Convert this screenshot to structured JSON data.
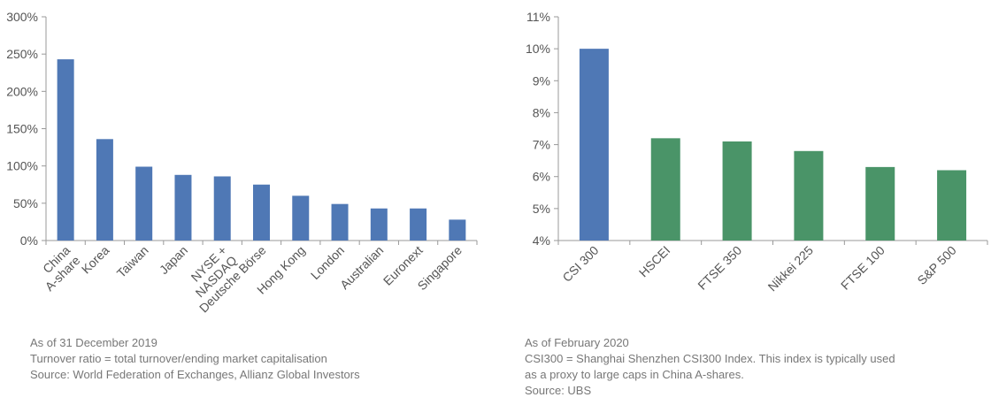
{
  "chart_data": [
    {
      "type": "bar",
      "title": "",
      "xlabel": "",
      "ylabel": "",
      "categories": [
        [
          "China",
          "A-share"
        ],
        [
          "Korea"
        ],
        [
          "Taiwan"
        ],
        [
          "Japan"
        ],
        [
          "NYSE +",
          "NASDAQ"
        ],
        [
          "Deutsche Börse"
        ],
        [
          "Hong Kong"
        ],
        [
          "London"
        ],
        [
          "Australian"
        ],
        [
          "Euronext"
        ],
        [
          "Singapore"
        ]
      ],
      "values": [
        243,
        136,
        99,
        88,
        86,
        75,
        60,
        49,
        43,
        43,
        28
      ],
      "colors": [
        "#4f78b5",
        "#4f78b5",
        "#4f78b5",
        "#4f78b5",
        "#4f78b5",
        "#4f78b5",
        "#4f78b5",
        "#4f78b5",
        "#4f78b5",
        "#4f78b5",
        "#4f78b5"
      ],
      "ylim": [
        0,
        300
      ],
      "yticks": [
        0,
        50,
        100,
        150,
        200,
        250,
        300
      ],
      "ytick_labels": [
        "0%",
        "50%",
        "100%",
        "150%",
        "200%",
        "250%",
        "300%"
      ],
      "grid": false
    },
    {
      "type": "bar",
      "title": "",
      "xlabel": "",
      "ylabel": "",
      "categories": [
        [
          "CSI 300"
        ],
        [
          "HSCEI"
        ],
        [
          "FTSE 350"
        ],
        [
          "Nikkei 225"
        ],
        [
          "FTSE 100"
        ],
        [
          "S&P 500"
        ]
      ],
      "values": [
        10.0,
        7.2,
        7.1,
        6.8,
        6.3,
        6.2
      ],
      "colors": [
        "#4f78b5",
        "#4a9468",
        "#4a9468",
        "#4a9468",
        "#4a9468",
        "#4a9468"
      ],
      "ylim": [
        4,
        11
      ],
      "yticks": [
        4,
        5,
        6,
        7,
        8,
        9,
        10,
        11
      ],
      "ytick_labels": [
        "4%",
        "5%",
        "6%",
        "7%",
        "8%",
        "9%",
        "10%",
        "11%"
      ],
      "grid": false
    }
  ],
  "notes_left": [
    "As of 31 December 2019",
    "Turnover ratio = total turnover/ending market capitalisation",
    "Source: World Federation of Exchanges, Allianz Global Investors"
  ],
  "notes_right": [
    "As of February 2020",
    "CSI300 = Shanghai Shenzhen CSI300 Index. This index is typically used",
    "as a proxy to large caps in China A-shares.",
    "Source: UBS"
  ]
}
